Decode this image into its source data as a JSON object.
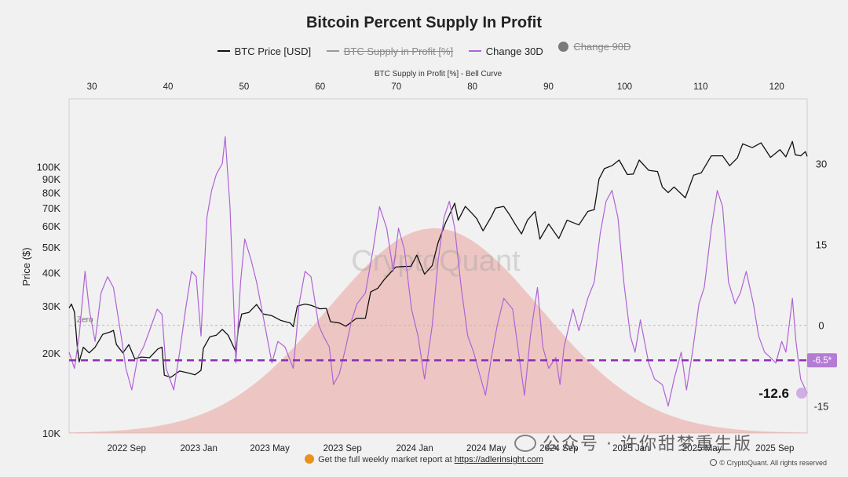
{
  "title": "Bitcoin Percent Supply In Profit",
  "legend": [
    {
      "label": "BTC Price [USD]",
      "color": "#111111",
      "marker": "line",
      "active": true
    },
    {
      "label": "BTC Supply in Profit [%]",
      "color": "#999999",
      "marker": "line",
      "active": false
    },
    {
      "label": "Change 30D",
      "color": "#b063d6",
      "marker": "line",
      "active": true
    },
    {
      "label": "Change 90D",
      "color": "#7a7a7a",
      "marker": "dot",
      "active": false
    }
  ],
  "footer": {
    "text": "Get the full weekly market report at ",
    "url": "https://adlerinsight.com",
    "credit": "© CryptoQuant. All rights reserved"
  },
  "watermark": "CryptoQuant",
  "wechat_overlay": "公众号 · 许你甜梦重生版",
  "chart_data": {
    "type": "line",
    "top_axis": {
      "label": "BTC Supply in Profit [%] - Bell Curve",
      "ticks": [
        30,
        40,
        50,
        60,
        70,
        80,
        90,
        100,
        110,
        120
      ],
      "range": [
        27,
        124
      ]
    },
    "x_axis": {
      "ticks": [
        "2022 Sep",
        "2023 Jan",
        "2023 May",
        "2023 Sep",
        "2024 Jan",
        "2024 May",
        "2024 Sep",
        "2025 Jan",
        "2025 May",
        "2025 Sep"
      ],
      "range": [
        "2022-06-01",
        "2025-10-31"
      ]
    },
    "left_axis": {
      "label": "Price ($)",
      "scale": "log",
      "range": [
        10000,
        180000
      ],
      "ticks": [
        {
          "v": 10000,
          "t": "10K"
        },
        {
          "v": 20000,
          "t": "20K"
        },
        {
          "v": 30000,
          "t": "30K"
        },
        {
          "v": 40000,
          "t": "40K"
        },
        {
          "v": 50000,
          "t": "50K"
        },
        {
          "v": 60000,
          "t": "60K"
        },
        {
          "v": 70000,
          "t": "70K"
        },
        {
          "v": 80000,
          "t": "80K"
        },
        {
          "v": 90000,
          "t": "90K"
        },
        {
          "v": 100000,
          "t": "100K"
        }
      ]
    },
    "right_axis": {
      "range": [
        -20,
        42
      ],
      "ticks": [
        -15,
        0,
        15,
        30
      ]
    },
    "zero_label": "Zero",
    "reference_line": {
      "value": -6.5,
      "label": "-6.5*",
      "color": "#8e2fb3"
    },
    "current_value": {
      "value": -12.6,
      "label": "-12.6"
    },
    "bell_curve": {
      "peak_x": 75,
      "peak_y": 38,
      "sigma": 14,
      "color": "#e9a39d"
    },
    "series": [
      {
        "name": "BTC Price [USD]",
        "axis": "left",
        "color": "#111111",
        "points": [
          [
            "2022-06-01",
            29500
          ],
          [
            "2022-06-05",
            30500
          ],
          [
            "2022-06-10",
            28500
          ],
          [
            "2022-06-15",
            21000
          ],
          [
            "2022-06-18",
            18500
          ],
          [
            "2022-06-25",
            21000
          ],
          [
            "2022-07-05",
            20000
          ],
          [
            "2022-07-15",
            21000
          ],
          [
            "2022-07-28",
            23500
          ],
          [
            "2022-08-10",
            24000
          ],
          [
            "2022-08-15",
            24300
          ],
          [
            "2022-08-20",
            21500
          ],
          [
            "2022-08-31",
            20000
          ],
          [
            "2022-09-10",
            21500
          ],
          [
            "2022-09-20",
            19000
          ],
          [
            "2022-10-01",
            19300
          ],
          [
            "2022-10-15",
            19200
          ],
          [
            "2022-10-29",
            20700
          ],
          [
            "2022-11-05",
            21000
          ],
          [
            "2022-11-09",
            16500
          ],
          [
            "2022-11-20",
            16200
          ],
          [
            "2022-12-05",
            17100
          ],
          [
            "2022-12-20",
            16800
          ],
          [
            "2022-12-31",
            16550
          ],
          [
            "2023-01-10",
            17200
          ],
          [
            "2023-01-14",
            20800
          ],
          [
            "2023-01-25",
            23000
          ],
          [
            "2023-02-05",
            23300
          ],
          [
            "2023-02-15",
            24500
          ],
          [
            "2023-02-25",
            23300
          ],
          [
            "2023-03-10",
            20200
          ],
          [
            "2023-03-14",
            24500
          ],
          [
            "2023-03-20",
            28000
          ],
          [
            "2023-04-01",
            28400
          ],
          [
            "2023-04-14",
            30400
          ],
          [
            "2023-04-25",
            28000
          ],
          [
            "2023-05-10",
            27600
          ],
          [
            "2023-05-25",
            26500
          ],
          [
            "2023-06-10",
            25900
          ],
          [
            "2023-06-15",
            25100
          ],
          [
            "2023-06-22",
            30000
          ],
          [
            "2023-07-05",
            30500
          ],
          [
            "2023-07-15",
            30200
          ],
          [
            "2023-07-30",
            29300
          ],
          [
            "2023-08-10",
            29400
          ],
          [
            "2023-08-17",
            26200
          ],
          [
            "2023-09-01",
            25900
          ],
          [
            "2023-09-12",
            25200
          ],
          [
            "2023-09-30",
            27000
          ],
          [
            "2023-10-15",
            27000
          ],
          [
            "2023-10-24",
            33900
          ],
          [
            "2023-11-05",
            35000
          ],
          [
            "2023-11-15",
            37500
          ],
          [
            "2023-12-05",
            42000
          ],
          [
            "2023-12-15",
            42200
          ],
          [
            "2023-12-31",
            42300
          ],
          [
            "2024-01-10",
            46600
          ],
          [
            "2024-01-23",
            39500
          ],
          [
            "2024-02-05",
            42600
          ],
          [
            "2024-02-15",
            52000
          ],
          [
            "2024-02-28",
            62000
          ],
          [
            "2024-03-05",
            66000
          ],
          [
            "2024-03-14",
            73000
          ],
          [
            "2024-03-20",
            63000
          ],
          [
            "2024-04-01",
            71000
          ],
          [
            "2024-04-12",
            67000
          ],
          [
            "2024-04-20",
            64000
          ],
          [
            "2024-05-01",
            57500
          ],
          [
            "2024-05-15",
            65000
          ],
          [
            "2024-05-22",
            70000
          ],
          [
            "2024-06-05",
            71000
          ],
          [
            "2024-06-15",
            66000
          ],
          [
            "2024-06-25",
            60500
          ],
          [
            "2024-07-05",
            56000
          ],
          [
            "2024-07-15",
            63000
          ],
          [
            "2024-07-28",
            68000
          ],
          [
            "2024-08-05",
            53500
          ],
          [
            "2024-08-20",
            61000
          ],
          [
            "2024-09-06",
            53800
          ],
          [
            "2024-09-20",
            63000
          ],
          [
            "2024-10-10",
            60500
          ],
          [
            "2024-10-25",
            68000
          ],
          [
            "2024-11-05",
            69000
          ],
          [
            "2024-11-13",
            90000
          ],
          [
            "2024-11-22",
            98500
          ],
          [
            "2024-12-05",
            101000
          ],
          [
            "2024-12-17",
            106000
          ],
          [
            "2024-12-31",
            93500
          ],
          [
            "2025-01-10",
            94000
          ],
          [
            "2025-01-20",
            106000
          ],
          [
            "2025-02-05",
            97000
          ],
          [
            "2025-02-20",
            96000
          ],
          [
            "2025-02-28",
            84000
          ],
          [
            "2025-03-10",
            80000
          ],
          [
            "2025-03-20",
            84000
          ],
          [
            "2025-04-08",
            76500
          ],
          [
            "2025-04-22",
            93000
          ],
          [
            "2025-05-05",
            95000
          ],
          [
            "2025-05-22",
            110000
          ],
          [
            "2025-06-10",
            110000
          ],
          [
            "2025-06-22",
            101000
          ],
          [
            "2025-07-05",
            108000
          ],
          [
            "2025-07-14",
            122000
          ],
          [
            "2025-07-30",
            118000
          ],
          [
            "2025-08-14",
            123000
          ],
          [
            "2025-08-30",
            108500
          ],
          [
            "2025-09-15",
            116000
          ],
          [
            "2025-09-25",
            109000
          ],
          [
            "2025-10-06",
            124500
          ],
          [
            "2025-10-11",
            111000
          ],
          [
            "2025-10-20",
            110000
          ],
          [
            "2025-10-28",
            114000
          ],
          [
            "2025-10-31",
            109500
          ]
        ]
      },
      {
        "name": "Change 30D",
        "axis": "right",
        "color": "#b063d6",
        "points": [
          [
            "2022-06-01",
            -5
          ],
          [
            "2022-06-10",
            -8
          ],
          [
            "2022-06-18",
            -2
          ],
          [
            "2022-06-28",
            10
          ],
          [
            "2022-07-05",
            3
          ],
          [
            "2022-07-15",
            -3
          ],
          [
            "2022-07-25",
            6
          ],
          [
            "2022-08-05",
            9
          ],
          [
            "2022-08-15",
            7
          ],
          [
            "2022-08-28",
            -2
          ],
          [
            "2022-09-05",
            -8
          ],
          [
            "2022-09-15",
            -12
          ],
          [
            "2022-09-25",
            -6
          ],
          [
            "2022-10-05",
            -4
          ],
          [
            "2022-10-15",
            -1
          ],
          [
            "2022-10-28",
            3
          ],
          [
            "2022-11-05",
            2
          ],
          [
            "2022-11-12",
            -8
          ],
          [
            "2022-11-25",
            -12
          ],
          [
            "2022-12-05",
            -5
          ],
          [
            "2022-12-15",
            3
          ],
          [
            "2022-12-25",
            10
          ],
          [
            "2023-01-02",
            9
          ],
          [
            "2023-01-10",
            -2
          ],
          [
            "2023-01-20",
            20
          ],
          [
            "2023-01-28",
            25
          ],
          [
            "2023-02-05",
            28
          ],
          [
            "2023-02-15",
            30
          ],
          [
            "2023-02-20",
            35
          ],
          [
            "2023-02-28",
            22
          ],
          [
            "2023-03-10",
            -7
          ],
          [
            "2023-03-18",
            8
          ],
          [
            "2023-03-25",
            16
          ],
          [
            "2023-04-05",
            12
          ],
          [
            "2023-04-14",
            8
          ],
          [
            "2023-04-28",
            0
          ],
          [
            "2023-05-10",
            -7
          ],
          [
            "2023-05-20",
            -3
          ],
          [
            "2023-06-01",
            -4
          ],
          [
            "2023-06-15",
            -8
          ],
          [
            "2023-06-25",
            4
          ],
          [
            "2023-07-05",
            10
          ],
          [
            "2023-07-15",
            9
          ],
          [
            "2023-07-28",
            0
          ],
          [
            "2023-08-05",
            -2
          ],
          [
            "2023-08-15",
            -4
          ],
          [
            "2023-08-22",
            -11
          ],
          [
            "2023-09-01",
            -9
          ],
          [
            "2023-09-12",
            -4
          ],
          [
            "2023-09-22",
            1
          ],
          [
            "2023-10-01",
            4
          ],
          [
            "2023-10-15",
            6
          ],
          [
            "2023-10-28",
            14
          ],
          [
            "2023-11-08",
            22
          ],
          [
            "2023-11-20",
            18
          ],
          [
            "2023-12-01",
            10
          ],
          [
            "2023-12-10",
            18
          ],
          [
            "2023-12-20",
            14
          ],
          [
            "2024-01-01",
            3
          ],
          [
            "2024-01-12",
            -2
          ],
          [
            "2024-01-23",
            -10
          ],
          [
            "2024-02-05",
            0
          ],
          [
            "2024-02-15",
            12
          ],
          [
            "2024-02-25",
            20
          ],
          [
            "2024-03-05",
            23
          ],
          [
            "2024-03-14",
            18
          ],
          [
            "2024-03-25",
            7
          ],
          [
            "2024-04-05",
            -2
          ],
          [
            "2024-04-15",
            -5
          ],
          [
            "2024-04-25",
            -9
          ],
          [
            "2024-05-05",
            -13
          ],
          [
            "2024-05-15",
            -6
          ],
          [
            "2024-05-25",
            0
          ],
          [
            "2024-06-05",
            5
          ],
          [
            "2024-06-20",
            3
          ],
          [
            "2024-06-30",
            -5
          ],
          [
            "2024-07-10",
            -13
          ],
          [
            "2024-07-20",
            -2
          ],
          [
            "2024-08-01",
            7
          ],
          [
            "2024-08-10",
            -4
          ],
          [
            "2024-08-20",
            -8
          ],
          [
            "2024-09-01",
            -6
          ],
          [
            "2024-09-08",
            -11
          ],
          [
            "2024-09-15",
            -4
          ],
          [
            "2024-09-30",
            3
          ],
          [
            "2024-10-10",
            -1
          ],
          [
            "2024-10-25",
            5
          ],
          [
            "2024-11-05",
            8
          ],
          [
            "2024-11-15",
            17
          ],
          [
            "2024-11-25",
            23
          ],
          [
            "2024-12-05",
            25
          ],
          [
            "2024-12-15",
            20
          ],
          [
            "2024-12-25",
            8
          ],
          [
            "2025-01-05",
            -2
          ],
          [
            "2025-01-13",
            -5
          ],
          [
            "2025-01-22",
            1
          ],
          [
            "2025-02-05",
            -7
          ],
          [
            "2025-02-15",
            -10
          ],
          [
            "2025-02-28",
            -11
          ],
          [
            "2025-03-10",
            -15
          ],
          [
            "2025-03-20",
            -10
          ],
          [
            "2025-04-01",
            -5
          ],
          [
            "2025-04-10",
            -12
          ],
          [
            "2025-04-20",
            -5
          ],
          [
            "2025-05-01",
            4
          ],
          [
            "2025-05-10",
            7
          ],
          [
            "2025-05-22",
            18
          ],
          [
            "2025-06-01",
            25
          ],
          [
            "2025-06-10",
            22
          ],
          [
            "2025-06-20",
            8
          ],
          [
            "2025-07-01",
            4
          ],
          [
            "2025-07-10",
            6
          ],
          [
            "2025-07-20",
            10
          ],
          [
            "2025-08-01",
            4
          ],
          [
            "2025-08-10",
            -2
          ],
          [
            "2025-08-20",
            -5
          ],
          [
            "2025-08-30",
            -6
          ],
          [
            "2025-09-08",
            -7
          ],
          [
            "2025-09-18",
            -3
          ],
          [
            "2025-09-25",
            -5
          ],
          [
            "2025-10-06",
            5
          ],
          [
            "2025-10-12",
            -3
          ],
          [
            "2025-10-20",
            -10
          ],
          [
            "2025-10-31",
            -12.6
          ]
        ]
      }
    ]
  }
}
